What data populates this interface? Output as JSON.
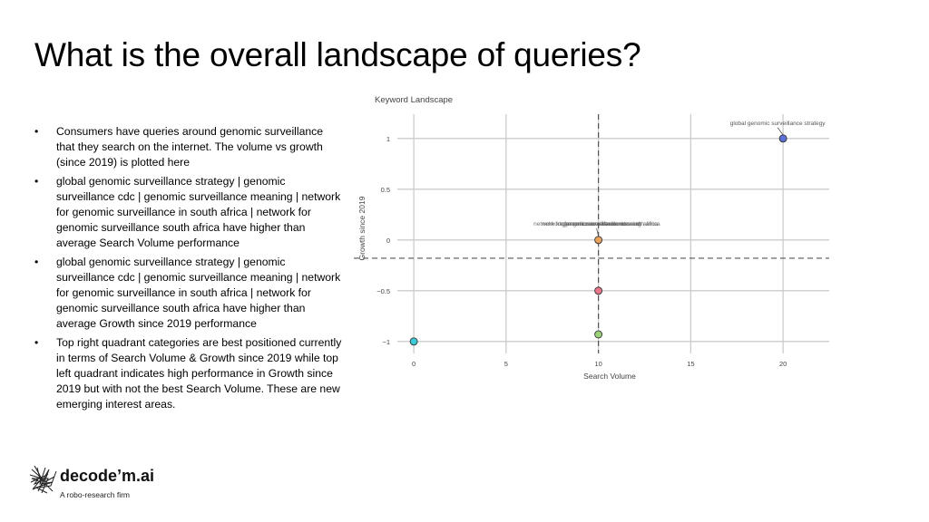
{
  "slide": {
    "title": "What is the overall landscape of queries?",
    "bullets": [
      "Consumers have queries around genomic surveillance that they search on the internet. The volume vs growth (since 2019) is plotted here",
      "global genomic surveillance strategy | genomic surveillance cdc | genomic surveillance meaning | network for genomic surveillance in south africa | network for genomic surveillance south africa have higher than average Search Volume performance",
      "global genomic surveillance strategy | genomic surveillance cdc | genomic surveillance meaning | network for genomic surveillance in south africa | network for genomic surveillance south africa have higher than average Growth since 2019 performance",
      "Top right quadrant categories are best positioned currently in terms of Search Volume & Growth since 2019 while top left quadrant indicates high performance in Growth since 2019 but with not the best Search Volume. These are new emerging interest areas."
    ],
    "bullet_marker": "•"
  },
  "logo": {
    "name": "decode’m.ai",
    "tagline": "A robo-research firm",
    "icon": "tangle-scribble-icon"
  },
  "chart_data": {
    "type": "scatter",
    "title": "Keyword Landscape",
    "xlabel": "Search Volume",
    "ylabel": "Growth since 2019",
    "xlim": [
      -0.3,
      22.5
    ],
    "ylim": [
      -1.1,
      1.15
    ],
    "xticks": [
      0,
      5,
      10,
      15,
      20
    ],
    "yticks": [
      -1,
      -0.5,
      0,
      0.5,
      1
    ],
    "ytick_labels": [
      "−1",
      "−0.5",
      "0",
      "0.5",
      "1"
    ],
    "grid": true,
    "reference_lines": {
      "x_mean": 10,
      "y_mean": -0.18
    },
    "points": [
      {
        "x": 20,
        "y": 1,
        "color": "#5b6fd6",
        "label": "global genomic surveillance strategy"
      },
      {
        "x": 10,
        "y": 0,
        "color": "#e8a25c",
        "label": "network for genomic surveillance in south africa"
      },
      {
        "x": 10,
        "y": -0.5,
        "color": "#e8778a",
        "label": ""
      },
      {
        "x": 10,
        "y": -0.93,
        "color": "#9bd27a",
        "label": ""
      },
      {
        "x": 0,
        "y": -1,
        "color": "#3cc9d8",
        "label": ""
      }
    ],
    "overlapped_labels": [
      "network for genomic surveillance in south africa",
      "network for genomic surveillance south africa",
      "genomic surveillance cdc",
      "genomic surveillance meaning"
    ],
    "colors": {
      "grid": "#cccccc",
      "axis_text": "#444444",
      "ref_line": "#555555"
    }
  }
}
